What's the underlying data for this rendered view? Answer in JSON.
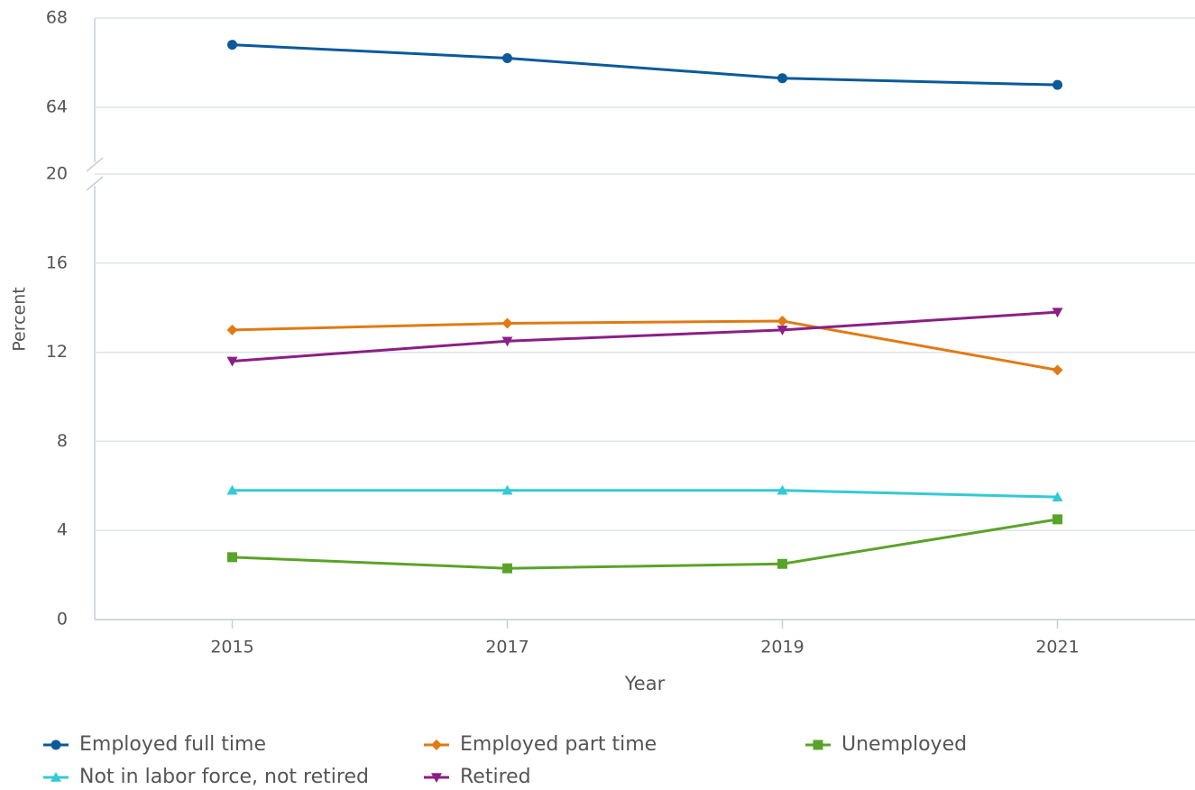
{
  "chart_data": {
    "type": "line",
    "x_label": "Year",
    "y_label": "Percent",
    "x": [
      2015,
      2017,
      2019,
      2021
    ],
    "xlim": [
      2014,
      2022
    ],
    "xticks": [
      2015,
      2017,
      2019,
      2021
    ],
    "y_segments": [
      {
        "ylim": [
          0,
          20
        ],
        "yticks": [
          0,
          4,
          8,
          12,
          16,
          20
        ]
      },
      {
        "ylim": [
          61,
          68
        ],
        "yticks": [
          64,
          68
        ]
      }
    ],
    "grid": true,
    "legend": "bottom",
    "series": [
      {
        "name": "Employed full time",
        "color": "#0b5a9a",
        "marker": "circle",
        "values": [
          66.8,
          66.2,
          65.3,
          65.0
        ]
      },
      {
        "name": "Employed part time",
        "color": "#e07b14",
        "marker": "diamond",
        "values": [
          13.0,
          13.3,
          13.4,
          11.2
        ]
      },
      {
        "name": "Unemployed",
        "color": "#5aa32a",
        "marker": "square",
        "values": [
          2.8,
          2.3,
          2.5,
          4.5
        ]
      },
      {
        "name": "Not in labor force, not retired",
        "color": "#34c9d6",
        "marker": "triangle-up",
        "values": [
          5.8,
          5.8,
          5.8,
          5.5
        ]
      },
      {
        "name": "Retired",
        "color": "#8b1f85",
        "marker": "triangle-down",
        "values": [
          11.6,
          12.5,
          13.0,
          13.8
        ]
      }
    ]
  }
}
